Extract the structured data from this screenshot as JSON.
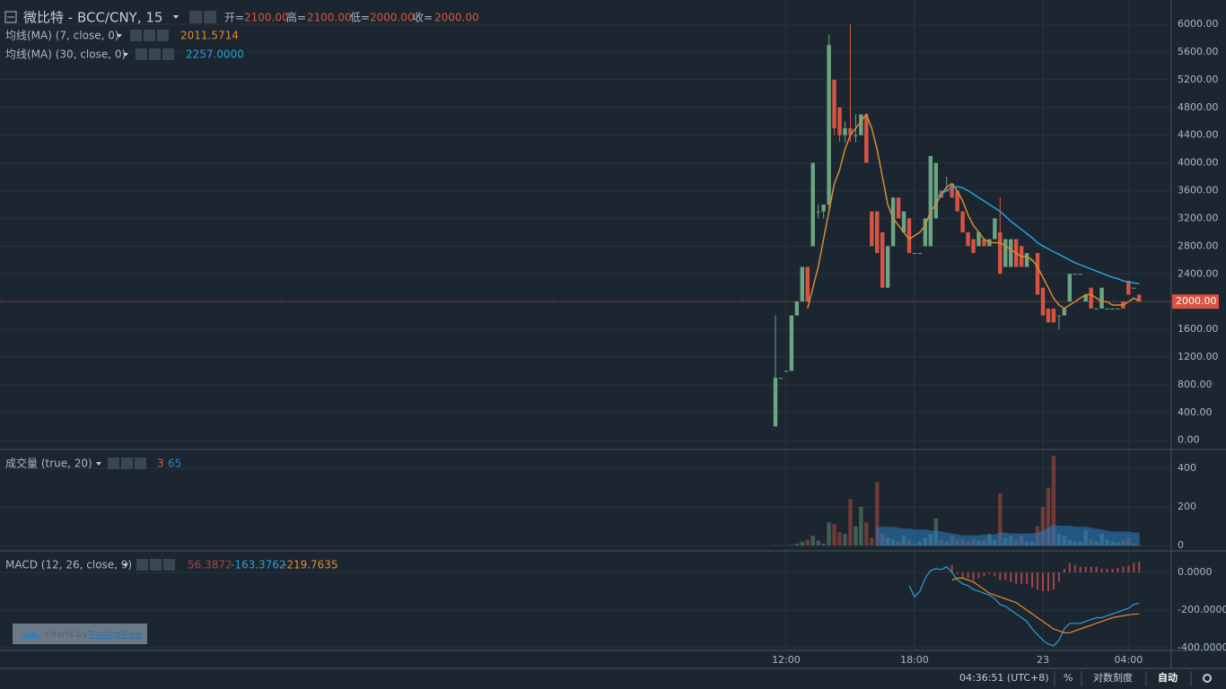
{
  "chart_data": [
    {
      "type": "candlestick",
      "title": "微比特 - BCC/CNY, 15",
      "legend": [
        {
          "label": "开=",
          "value": "2100.00"
        },
        {
          "label": "高=",
          "value": "2100.00"
        },
        {
          "label": "低=",
          "value": "2000.00"
        },
        {
          "label": "收=",
          "value": "2000.00"
        }
      ],
      "categories": [
        null,
        null,
        "12:00",
        null,
        null,
        null,
        null,
        null,
        null,
        null,
        null,
        null,
        null,
        null,
        null,
        null,
        null,
        null,
        null,
        null,
        null,
        null,
        null,
        null,
        null,
        null,
        "18:00",
        null,
        null,
        null,
        null,
        null,
        null,
        null,
        null,
        null,
        null,
        null,
        null,
        null,
        null,
        null,
        null,
        null,
        null,
        null,
        null,
        null,
        null,
        null,
        "23",
        null,
        null,
        null,
        null,
        null,
        null,
        null,
        null,
        null,
        null,
        null,
        null,
        null,
        null,
        null,
        "04:00",
        null,
        null
      ],
      "open": [
        200,
        900,
        1000,
        1000,
        1800,
        2000,
        2500,
        2800,
        3300,
        3300,
        3400,
        5200,
        4800,
        4400,
        4500,
        4400,
        4400,
        4700,
        3300,
        3300,
        3000,
        2200,
        2800,
        3500,
        3000,
        3200,
        2700,
        2700,
        2800,
        2800,
        3200,
        3600,
        3600,
        3700,
        3600,
        3300,
        3000,
        2900,
        2800,
        2900,
        2800,
        2900,
        3000,
        2500,
        2500,
        2900,
        2800,
        2500,
        2600,
        2700,
        2200,
        1900,
        1900,
        1800,
        1800,
        2000,
        2400,
        2400,
        2000,
        2200,
        1900,
        1900,
        1900,
        1900,
        1900,
        2000,
        2300,
        2200,
        2100
      ],
      "high": [
        1800,
        900,
        1000,
        1800,
        2000,
        2500,
        2500,
        4000,
        3400,
        3400,
        5850,
        5200,
        4800,
        4600,
        6000,
        4700,
        4700,
        4700,
        3300,
        3300,
        3000,
        2800,
        3500,
        3500,
        3300,
        3200,
        2700,
        2700,
        3200,
        4100,
        4000,
        3600,
        3800,
        3700,
        3600,
        3300,
        3000,
        2900,
        3000,
        2900,
        2900,
        3200,
        3500,
        2900,
        2900,
        2900,
        2800,
        2700,
        2600,
        2700,
        2200,
        1900,
        1900,
        1800,
        1900,
        2400,
        2400,
        2400,
        2100,
        2200,
        1900,
        2200,
        1900,
        1900,
        1900,
        2000,
        2300,
        2200,
        2100
      ],
      "low": [
        200,
        900,
        1000,
        1000,
        1800,
        2000,
        2000,
        2800,
        3200,
        3200,
        3300,
        4400,
        4300,
        4300,
        4300,
        4300,
        4400,
        4000,
        2800,
        2700,
        2200,
        2200,
        2800,
        3200,
        3000,
        2700,
        2700,
        2700,
        2800,
        2800,
        3200,
        3500,
        3600,
        3500,
        3300,
        3000,
        2800,
        2700,
        2800,
        2800,
        2800,
        2900,
        2400,
        2500,
        2500,
        2500,
        2500,
        2500,
        2600,
        2100,
        1800,
        1700,
        1700,
        1600,
        1800,
        2000,
        2400,
        2400,
        2000,
        1900,
        1900,
        1900,
        1900,
        1900,
        1900,
        1900,
        2100,
        2200,
        2000
      ],
      "close": [
        900,
        900,
        1000,
        1800,
        2000,
        2500,
        2000,
        4000,
        3300,
        3400,
        5700,
        4500,
        4400,
        4500,
        4400,
        4400,
        4700,
        4000,
        2800,
        2700,
        2200,
        2800,
        3500,
        3200,
        3300,
        2700,
        2700,
        2700,
        3200,
        4100,
        4000,
        3500,
        3600,
        3500,
        3300,
        3000,
        2800,
        2700,
        3000,
        2800,
        2900,
        3200,
        2400,
        2900,
        2900,
        2500,
        2500,
        2700,
        2600,
        2100,
        1800,
        1700,
        1700,
        1800,
        1900,
        2400,
        2400,
        2400,
        2100,
        1900,
        1900,
        2200,
        1900,
        1900,
        1900,
        1900,
        2100,
        2200,
        2000
      ],
      "up_color": "#6ba583",
      "down_color": "#d75442",
      "series": [
        {
          "name": "均线(MA) (7, close, 0)",
          "color": "#d98c2f",
          "value_label": "2011.5714",
          "values": [
            null,
            null,
            null,
            null,
            null,
            null,
            1900,
            2200,
            2500,
            2900,
            3300,
            3700,
            3900,
            4200,
            4400,
            4500,
            4600,
            4700,
            4500,
            4200,
            3800,
            3400,
            3200,
            3100,
            3000,
            2900,
            2950,
            3000,
            3100,
            3300,
            3400,
            3550,
            3650,
            3700,
            3600,
            3450,
            3250,
            3100,
            3000,
            2900,
            2850,
            2850,
            2850,
            2800,
            2750,
            2700,
            2650,
            2650,
            2600,
            2500,
            2350,
            2200,
            2050,
            1950,
            1900,
            1950,
            2000,
            2050,
            2100,
            2100,
            2050,
            2000,
            2000,
            1950,
            1950,
            1950,
            2000,
            2050,
            2011.5714
          ]
        },
        {
          "name": "均线(MA) (30, close, 0)",
          "color": "#2a9fd6",
          "value_label": "2257.0000",
          "values": [
            null,
            null,
            null,
            null,
            null,
            null,
            null,
            null,
            null,
            null,
            null,
            null,
            null,
            null,
            null,
            null,
            null,
            null,
            null,
            null,
            null,
            null,
            null,
            null,
            null,
            null,
            null,
            null,
            null,
            null,
            3500,
            3550,
            3600,
            3650,
            3660,
            3640,
            3600,
            3550,
            3500,
            3450,
            3400,
            3350,
            3300,
            3230,
            3160,
            3100,
            3040,
            2980,
            2920,
            2850,
            2800,
            2760,
            2720,
            2680,
            2640,
            2600,
            2560,
            2530,
            2500,
            2470,
            2440,
            2410,
            2380,
            2350,
            2330,
            2300,
            2280,
            2270,
            2257
          ]
        }
      ],
      "ylim": [
        -120,
        6350
      ],
      "yticks": [
        {
          "value": 0,
          "label": "0.00"
        },
        {
          "value": 400,
          "label": "400.00"
        },
        {
          "value": 800,
          "label": "800.00"
        },
        {
          "value": 1200,
          "label": "1200.00"
        },
        {
          "value": 1600,
          "label": "1600.00"
        },
        {
          "value": 2000,
          "label": "2000.00"
        },
        {
          "value": 2400,
          "label": "2400.00"
        },
        {
          "value": 2800,
          "label": "2800.00"
        },
        {
          "value": 3200,
          "label": "3200.00"
        },
        {
          "value": 3600,
          "label": "3600.00"
        },
        {
          "value": 4000,
          "label": "4000.00"
        },
        {
          "value": 4400,
          "label": "4400.00"
        },
        {
          "value": 4800,
          "label": "4800.00"
        },
        {
          "value": 5200,
          "label": "5200.00"
        },
        {
          "value": 5600,
          "label": "5600.00"
        },
        {
          "value": 6000,
          "label": "6000.00"
        }
      ],
      "grid": true
    },
    {
      "type": "bar",
      "title": "成交量 (true, 20)",
      "series": [
        {
          "name": "volume",
          "value_label": "3",
          "color": "#d75442",
          "values": [
            2,
            1,
            1,
            3,
            10,
            20,
            30,
            50,
            25,
            10,
            120,
            110,
            70,
            60,
            240,
            100,
            200,
            120,
            40,
            330,
            60,
            40,
            30,
            20,
            50,
            30,
            10,
            20,
            40,
            60,
            140,
            30,
            20,
            50,
            30,
            30,
            20,
            30,
            25,
            30,
            60,
            30,
            270,
            40,
            50,
            30,
            50,
            20,
            20,
            100,
            200,
            300,
            465,
            60,
            50,
            30,
            20,
            20,
            80,
            30,
            20,
            60,
            30,
            20,
            15,
            30,
            40,
            10,
            3
          ]
        },
        {
          "name": "MA",
          "value_label": "65",
          "color": "#2a7fc4",
          "values": [
            null,
            null,
            null,
            null,
            null,
            null,
            null,
            null,
            null,
            null,
            null,
            null,
            null,
            null,
            null,
            null,
            null,
            null,
            null,
            90,
            95,
            95,
            95,
            90,
            85,
            85,
            80,
            80,
            80,
            75,
            75,
            70,
            65,
            60,
            55,
            50,
            50,
            50,
            50,
            55,
            55,
            55,
            65,
            65,
            60,
            60,
            60,
            60,
            60,
            65,
            75,
            90,
            105,
            100,
            100,
            100,
            95,
            95,
            95,
            90,
            85,
            80,
            75,
            70,
            70,
            70,
            70,
            65,
            65
          ]
        }
      ],
      "ylim": [
        -23,
        493
      ],
      "yticks": [
        0,
        200,
        400
      ],
      "grid": true
    },
    {
      "type": "line",
      "title": "MACD (12, 26, close, 9)",
      "series": [
        {
          "name": "histogram",
          "style": "histogram",
          "color": "#a8444a",
          "value_label": "56.3872",
          "values": [
            null,
            null,
            null,
            null,
            null,
            null,
            null,
            null,
            null,
            null,
            null,
            null,
            null,
            null,
            null,
            null,
            null,
            null,
            null,
            null,
            null,
            null,
            null,
            null,
            null,
            null,
            null,
            null,
            null,
            null,
            null,
            null,
            null,
            40,
            -10,
            -30,
            -30,
            -40,
            -30,
            -20,
            -10,
            -20,
            -40,
            -40,
            -50,
            -60,
            -60,
            -60,
            -80,
            -90,
            -100,
            -100,
            -90,
            -50,
            20,
            50,
            40,
            30,
            30,
            30,
            30,
            20,
            20,
            20,
            25,
            30,
            35,
            52,
            56.3872
          ]
        },
        {
          "name": "MACD",
          "style": "line",
          "color": "#2a9fd6",
          "value_label": "-163.3762",
          "values": [
            null,
            null,
            null,
            null,
            null,
            null,
            null,
            null,
            null,
            null,
            null,
            null,
            null,
            null,
            null,
            null,
            null,
            null,
            null,
            null,
            null,
            null,
            null,
            null,
            null,
            -70,
            -130,
            -100,
            -30,
            10,
            20,
            15,
            30,
            0,
            -40,
            -60,
            -70,
            -90,
            -100,
            -110,
            -120,
            -140,
            -170,
            -180,
            -200,
            -220,
            -240,
            -260,
            -300,
            -330,
            -360,
            -380,
            -390,
            -360,
            -300,
            -270,
            -270,
            -270,
            -260,
            -250,
            -240,
            -240,
            -230,
            -220,
            -210,
            -200,
            -190,
            -170,
            -163.3762
          ]
        },
        {
          "name": "Signal",
          "style": "line",
          "color": "#e88a2a",
          "value_label": "-219.7635",
          "values": [
            null,
            null,
            null,
            null,
            null,
            null,
            null,
            null,
            null,
            null,
            null,
            null,
            null,
            null,
            null,
            null,
            null,
            null,
            null,
            null,
            null,
            null,
            null,
            null,
            null,
            null,
            null,
            null,
            null,
            null,
            null,
            null,
            null,
            -40,
            -30,
            -30,
            -40,
            -50,
            -70,
            -90,
            -110,
            -120,
            -130,
            -140,
            -150,
            -160,
            -180,
            -200,
            -220,
            -240,
            -260,
            -280,
            -300,
            -310,
            -320,
            -320,
            -310,
            -300,
            -290,
            -280,
            -270,
            -260,
            -250,
            -240,
            -235,
            -230,
            -225,
            -222,
            -219.7635
          ]
        }
      ],
      "ylim": [
        -414,
        110
      ],
      "yticks": [
        {
          "value": 0,
          "label": "0.0000"
        },
        {
          "value": -200,
          "label": "-200.0000"
        },
        {
          "value": -400,
          "label": "-400.0000"
        }
      ],
      "grid": true
    }
  ],
  "watermark": {
    "prefix": "charts by",
    "brand": "TradingView"
  },
  "status_bar": {
    "time": "04:36:51 (UTC+8)",
    "percent": "%",
    "log": "对数刻度",
    "auto": "自动"
  }
}
